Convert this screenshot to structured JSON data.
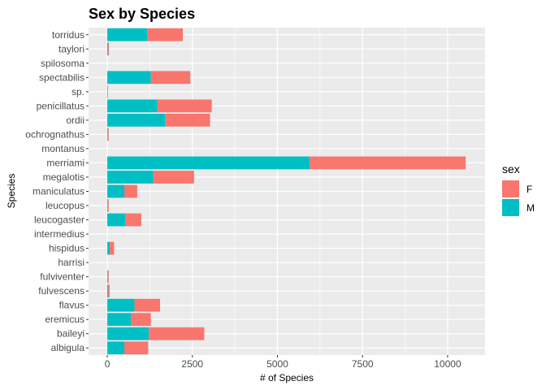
{
  "chart_data": {
    "type": "bar",
    "orientation": "horizontal",
    "stacked": true,
    "title": "Sex by Species",
    "xlabel": "# of Species",
    "ylabel": "Species",
    "xlim": [
      -550,
      11100
    ],
    "x_ticks": [
      0,
      2500,
      5000,
      7500,
      10000
    ],
    "x_tick_labels": [
      "0",
      "2500",
      "5000",
      "7500",
      "10000"
    ],
    "grid": true,
    "legend_position": "right",
    "legend_title": "sex",
    "categories": [
      "albigula",
      "baileyi",
      "eremicus",
      "flavus",
      "fulvescens",
      "fulviventer",
      "harrisi",
      "hispidus",
      "intermedius",
      "leucogaster",
      "leucopus",
      "maniculatus",
      "megalotis",
      "merriami",
      "montanus",
      "ochrognathus",
      "ordii",
      "penicillatus",
      "sp.",
      "spectabilis",
      "spilosoma",
      "taylori",
      "torridus"
    ],
    "series": [
      {
        "name": "M",
        "color": "#00bfc4",
        "values": [
          500,
          1220,
          700,
          800,
          30,
          20,
          0,
          70,
          0,
          530,
          20,
          500,
          1350,
          5950,
          0,
          20,
          1700,
          1470,
          0,
          1280,
          0,
          30,
          1170
        ]
      },
      {
        "name": "F",
        "color": "#f8766d",
        "values": [
          700,
          1630,
          580,
          750,
          40,
          20,
          0,
          130,
          0,
          470,
          20,
          380,
          1200,
          4580,
          0,
          20,
          1320,
          1600,
          20,
          1160,
          0,
          20,
          1050
        ]
      }
    ]
  }
}
